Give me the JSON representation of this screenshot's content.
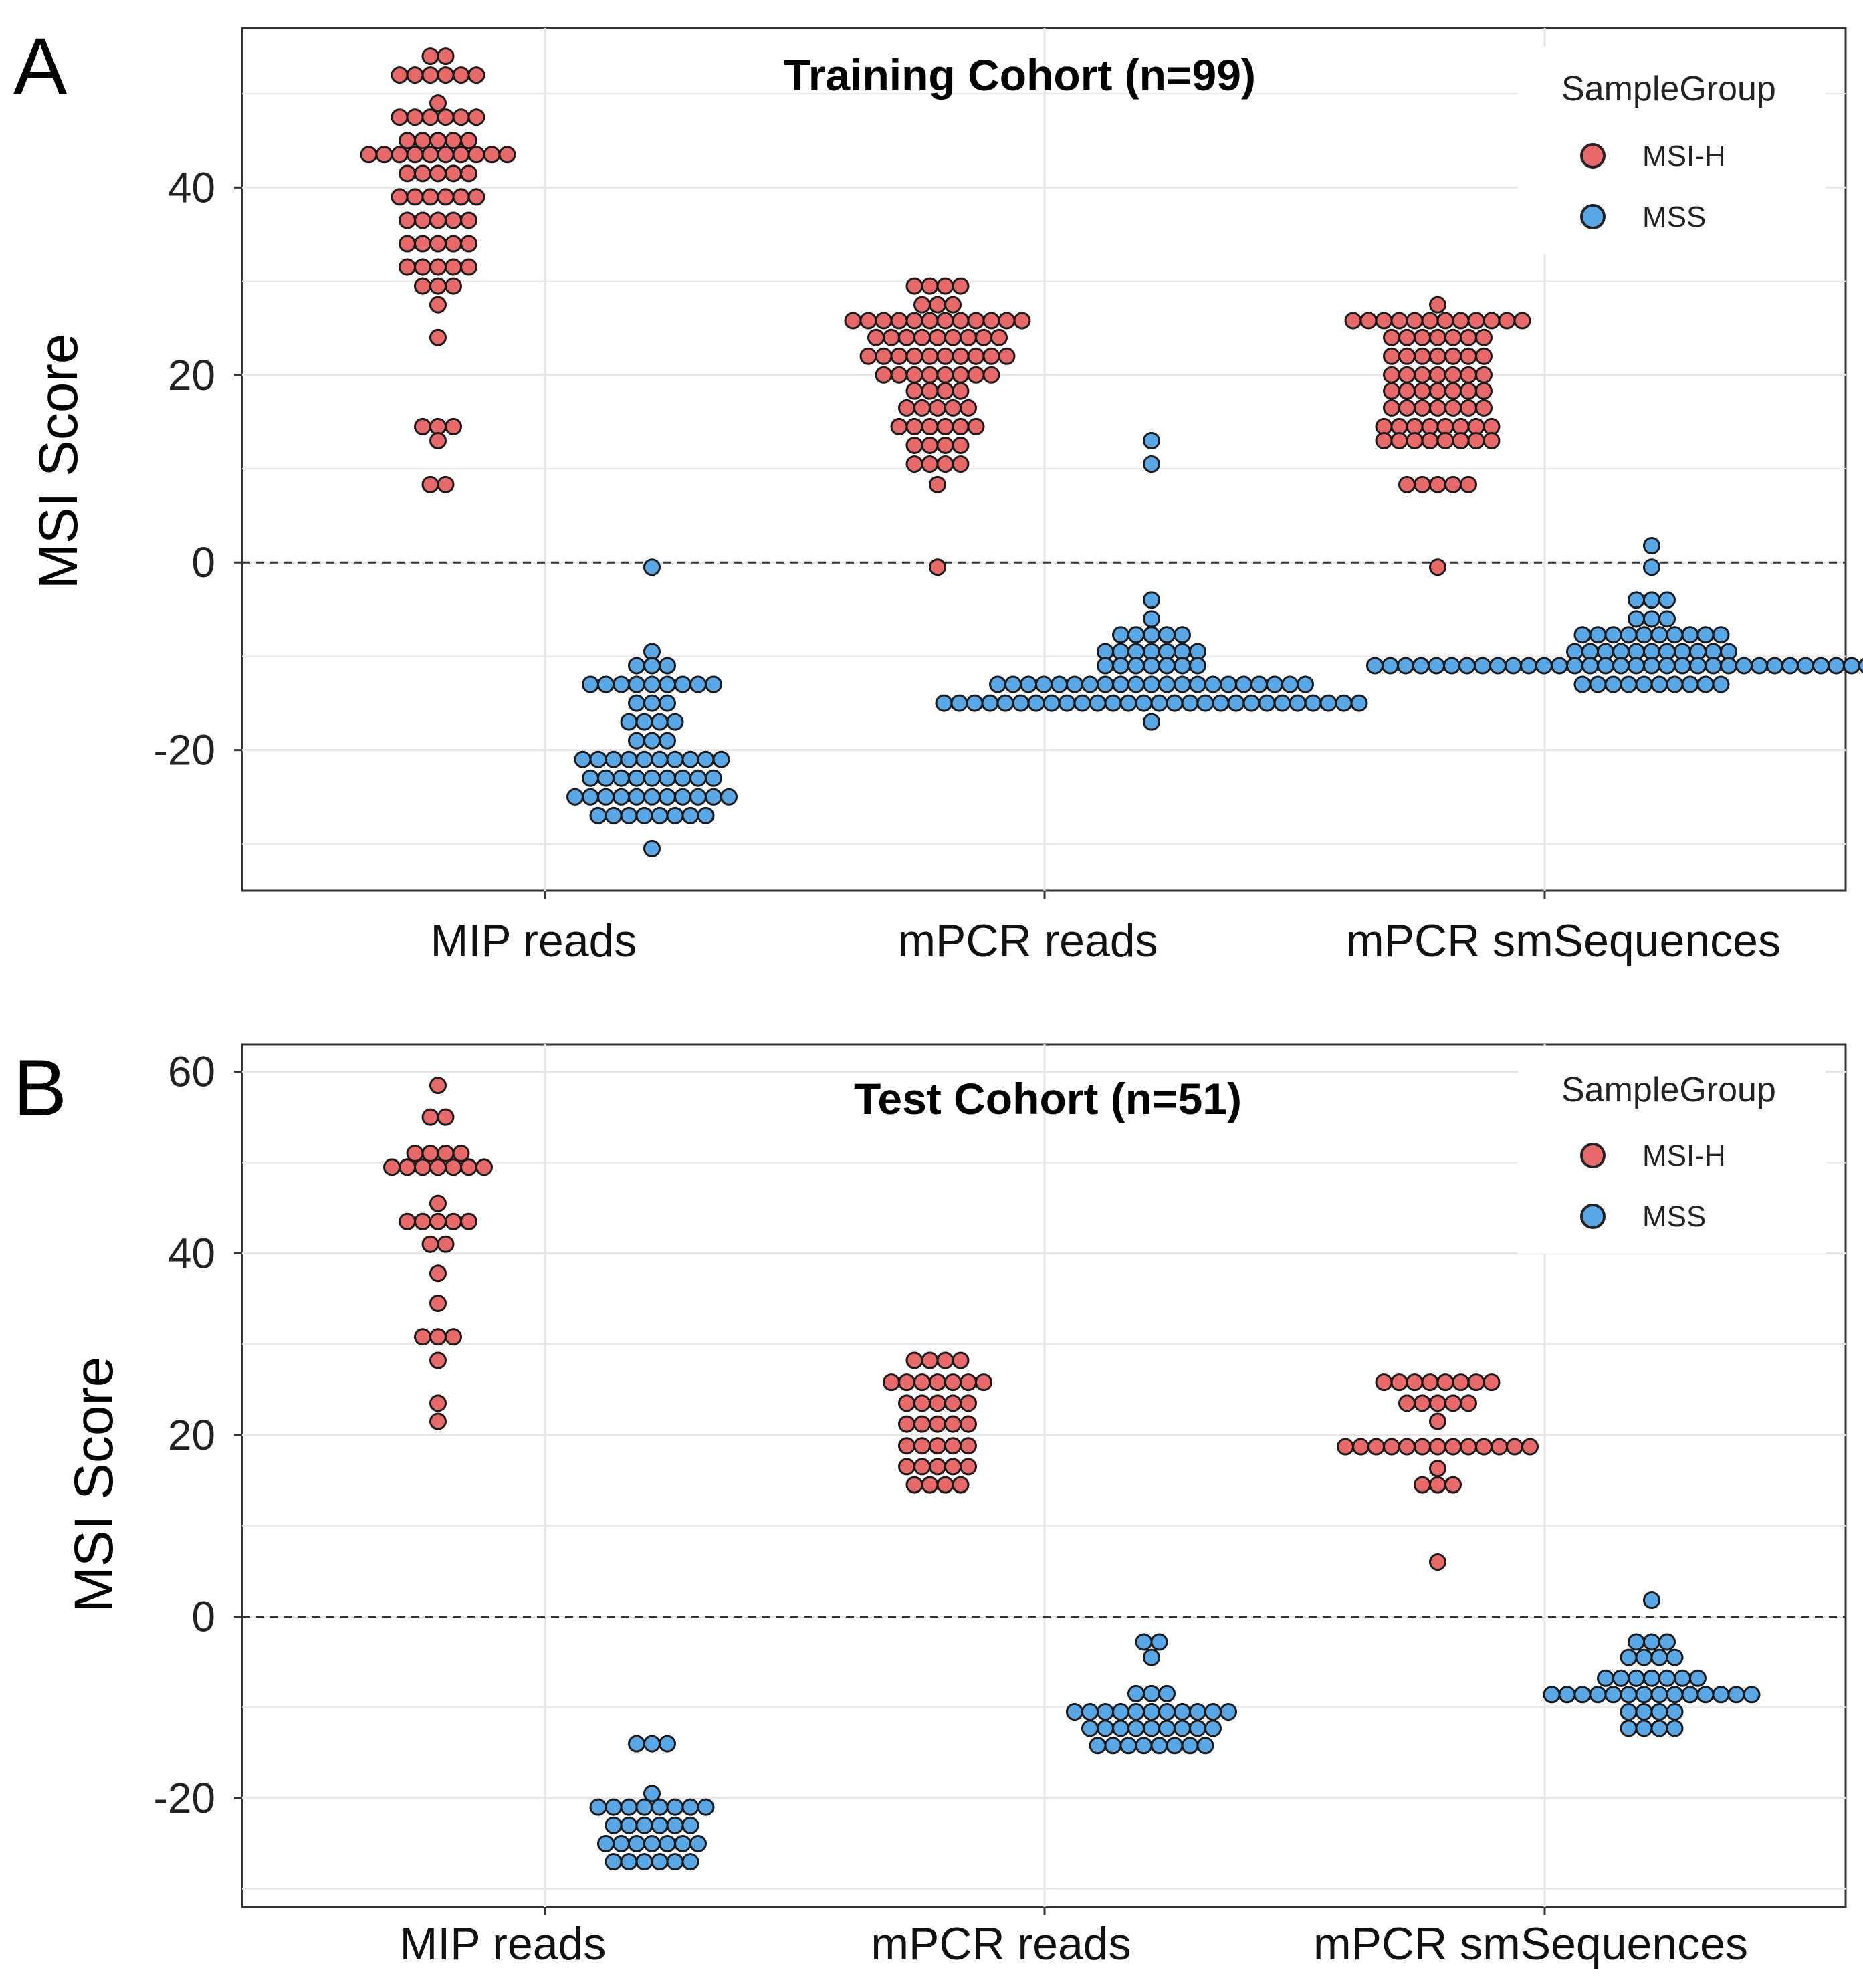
{
  "chart_data": [
    {
      "panel": "A",
      "type": "scatter",
      "subtype": "beeswarm",
      "title": "Training Cohort (n=99)",
      "ylabel": "MSI Score",
      "xlabel": "",
      "categories": [
        "MIP reads",
        "mPCR reads",
        "mPCR smSequences"
      ],
      "ylim": [
        -35,
        57
      ],
      "yticks": [
        -20,
        0,
        20,
        40
      ],
      "grid": true,
      "reference_line": 0,
      "legend": {
        "title": "SampleGroup",
        "position": "top-right",
        "entries": [
          "MSI-H",
          "MSS"
        ]
      },
      "series": [
        {
          "name": "MSI-H",
          "color": "#E8696A",
          "points": [
            {
              "category": "MIP reads",
              "bins": [
                [
                  54,
                  2
                ],
                [
                  52,
                  6
                ],
                [
                  49,
                  1
                ],
                [
                  47.5,
                  6
                ],
                [
                  45,
                  5
                ],
                [
                  43.5,
                  10
                ],
                [
                  41.5,
                  5
                ],
                [
                  39,
                  6
                ],
                [
                  36.5,
                  5
                ],
                [
                  34,
                  5
                ],
                [
                  31.5,
                  5
                ],
                [
                  29.5,
                  3
                ],
                [
                  27.5,
                  1
                ],
                [
                  24,
                  1
                ],
                [
                  14.5,
                  3
                ],
                [
                  13,
                  1
                ],
                [
                  8.3,
                  2
                ]
              ]
            },
            {
              "category": "mPCR reads",
              "bins": [
                [
                  29.5,
                  4
                ],
                [
                  27.5,
                  3
                ],
                [
                  25.8,
                  12
                ],
                [
                  24,
                  9
                ],
                [
                  22,
                  10
                ],
                [
                  20,
                  8
                ],
                [
                  18.3,
                  4
                ],
                [
                  16.5,
                  5
                ],
                [
                  14.5,
                  6
                ],
                [
                  12.5,
                  4
                ],
                [
                  10.5,
                  4
                ],
                [
                  8.3,
                  1
                ],
                [
                  -0.5,
                  1
                ]
              ]
            },
            {
              "category": "mPCR smSequences",
              "bins": [
                [
                  27.5,
                  1
                ],
                [
                  25.8,
                  12
                ],
                [
                  24,
                  7
                ],
                [
                  22,
                  7
                ],
                [
                  20,
                  7
                ],
                [
                  18.3,
                  7
                ],
                [
                  16.5,
                  7
                ],
                [
                  14.5,
                  8
                ],
                [
                  13,
                  8
                ],
                [
                  8.3,
                  5
                ],
                [
                  -0.5,
                  1
                ]
              ]
            }
          ]
        },
        {
          "name": "MSS",
          "color": "#5AA7E6",
          "points": [
            {
              "category": "MIP reads",
              "bins": [
                [
                  -0.5,
                  1
                ],
                [
                  -9.5,
                  1
                ],
                [
                  -11,
                  3
                ],
                [
                  -13,
                  9
                ],
                [
                  -15,
                  3
                ],
                [
                  -17,
                  4
                ],
                [
                  -19,
                  3
                ],
                [
                  -21,
                  10
                ],
                [
                  -23,
                  9
                ],
                [
                  -25,
                  11
                ],
                [
                  -27,
                  8
                ],
                [
                  -30.5,
                  1
                ]
              ]
            },
            {
              "category": "mPCR reads",
              "bins": [
                [
                  13,
                  1
                ],
                [
                  10.5,
                  1
                ],
                [
                  -4,
                  1
                ],
                [
                  -6,
                  1
                ],
                [
                  -7.7,
                  5
                ],
                [
                  -9.5,
                  7
                ],
                [
                  -11,
                  7
                ],
                [
                  -13,
                  21
                ],
                [
                  -15,
                  28
                ],
                [
                  -17,
                  1
                ]
              ]
            },
            {
              "category": "mPCR smSequences",
              "bins": [
                [
                  1.8,
                  1
                ],
                [
                  -0.5,
                  1
                ],
                [
                  -4,
                  3
                ],
                [
                  -6,
                  3
                ],
                [
                  -7.7,
                  10
                ],
                [
                  -9.5,
                  11
                ],
                [
                  -11,
                  37
                ],
                [
                  -13,
                  10
                ]
              ]
            }
          ]
        }
      ]
    },
    {
      "panel": "B",
      "type": "scatter",
      "subtype": "beeswarm",
      "title": "Test Cohort (n=51)",
      "ylabel": "MSI Score",
      "xlabel": "",
      "categories": [
        "MIP reads",
        "mPCR reads",
        "mPCR smSequences"
      ],
      "ylim": [
        -32,
        63
      ],
      "yticks": [
        -20,
        0,
        20,
        40,
        60
      ],
      "grid": true,
      "reference_line": 0,
      "legend": {
        "title": "SampleGroup",
        "position": "top-right",
        "entries": [
          "MSI-H",
          "MSS"
        ]
      },
      "series": [
        {
          "name": "MSI-H",
          "color": "#E8696A",
          "points": [
            {
              "category": "MIP reads",
              "bins": [
                [
                  58.5,
                  1
                ],
                [
                  55,
                  2
                ],
                [
                  51,
                  4
                ],
                [
                  49.5,
                  7
                ],
                [
                  45.5,
                  1
                ],
                [
                  43.5,
                  5
                ],
                [
                  41,
                  2
                ],
                [
                  37.8,
                  1
                ],
                [
                  34.5,
                  1
                ],
                [
                  30.8,
                  3
                ],
                [
                  28.2,
                  1
                ],
                [
                  23.5,
                  1
                ],
                [
                  21.5,
                  1
                ]
              ]
            },
            {
              "category": "mPCR reads",
              "bins": [
                [
                  28.2,
                  4
                ],
                [
                  25.8,
                  7
                ],
                [
                  23.5,
                  5
                ],
                [
                  21.2,
                  5
                ],
                [
                  18.8,
                  5
                ],
                [
                  16.5,
                  5
                ],
                [
                  14.5,
                  4
                ]
              ]
            },
            {
              "category": "mPCR smSequences",
              "bins": [
                [
                  25.8,
                  8
                ],
                [
                  23.5,
                  5
                ],
                [
                  21.5,
                  1
                ],
                [
                  18.7,
                  13
                ],
                [
                  16.3,
                  1
                ],
                [
                  14.5,
                  3
                ],
                [
                  6,
                  1
                ]
              ]
            }
          ]
        },
        {
          "name": "MSS",
          "color": "#5AA7E6",
          "points": [
            {
              "category": "MIP reads",
              "bins": [
                [
                  -14,
                  3
                ],
                [
                  -19.5,
                  1
                ],
                [
                  -21,
                  8
                ],
                [
                  -23,
                  6
                ],
                [
                  -25,
                  7
                ],
                [
                  -27,
                  6
                ]
              ]
            },
            {
              "category": "mPCR reads",
              "bins": [
                [
                  -2.8,
                  2
                ],
                [
                  -4.5,
                  1
                ],
                [
                  -8.5,
                  3
                ],
                [
                  -10.5,
                  11
                ],
                [
                  -12.3,
                  9
                ],
                [
                  -14.2,
                  8
                ]
              ]
            },
            {
              "category": "mPCR smSequences",
              "bins": [
                [
                  1.8,
                  1
                ],
                [
                  -2.8,
                  3
                ],
                [
                  -4.5,
                  4
                ],
                [
                  -6.8,
                  7
                ],
                [
                  -8.6,
                  14
                ],
                [
                  -10.5,
                  4
                ],
                [
                  -12.3,
                  4
                ]
              ]
            }
          ]
        }
      ]
    }
  ]
}
